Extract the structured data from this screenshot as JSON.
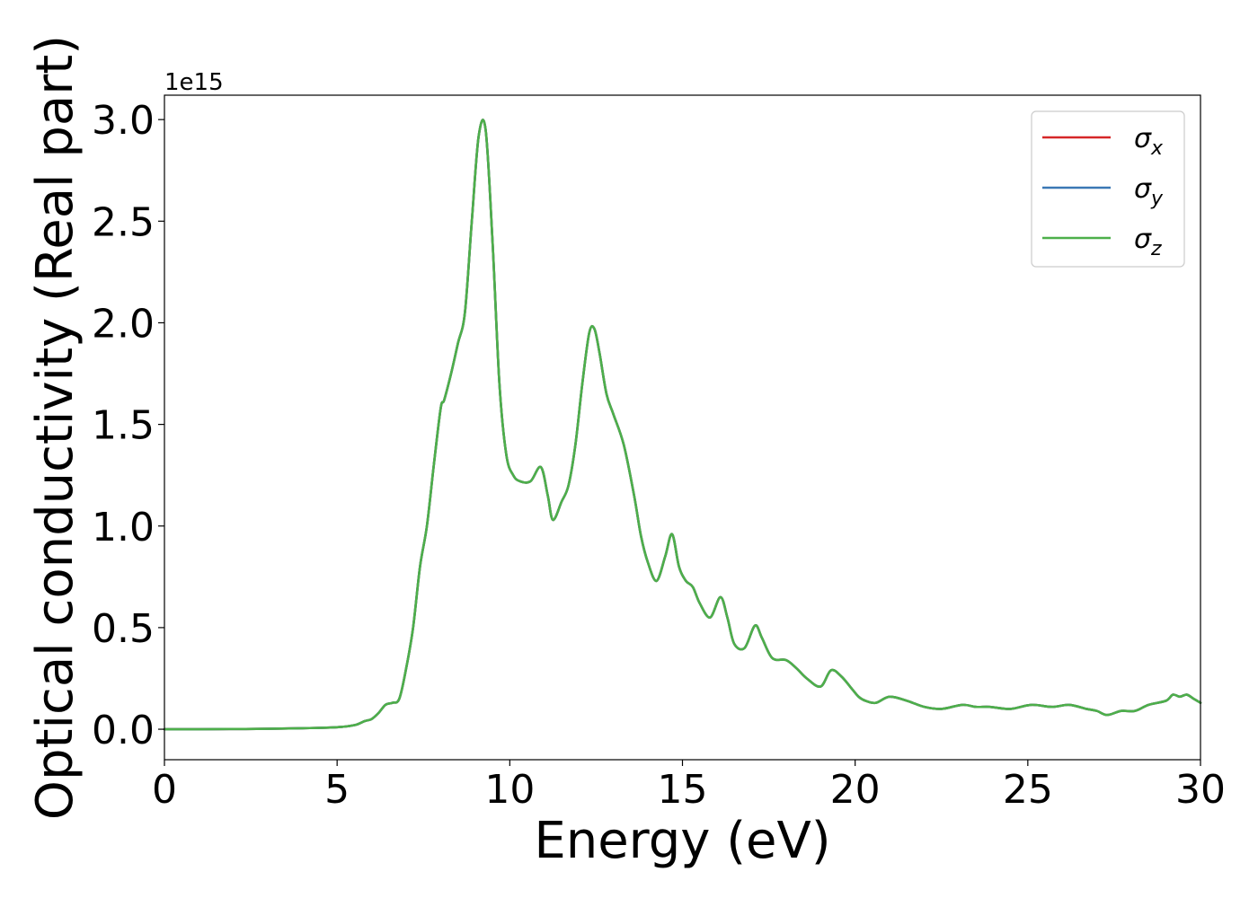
{
  "chart_data": {
    "type": "line",
    "xlabel": "Energy (eV)",
    "ylabel": "Optical conductivity (Real part)",
    "y_offset_text": "1e15",
    "y_scale": 1000000000000000.0,
    "xlim": [
      0,
      30
    ],
    "ylim": [
      -0.15,
      3.12
    ],
    "x_ticks": [
      0,
      5,
      10,
      15,
      20,
      25,
      30
    ],
    "x_tick_labels": [
      "0",
      "5",
      "10",
      "15",
      "20",
      "25",
      "30"
    ],
    "y_ticks": [
      0.0,
      0.5,
      1.0,
      1.5,
      2.0,
      2.5,
      3.0
    ],
    "y_tick_labels": [
      "0.0",
      "0.5",
      "1.0",
      "1.5",
      "2.0",
      "2.5",
      "3.0"
    ],
    "grid": false,
    "legend": {
      "placement": "top-right",
      "entries": [
        {
          "base": "σ",
          "sub": "x",
          "color": "#d62728"
        },
        {
          "base": "σ",
          "sub": "y",
          "color": "#3a78b5"
        },
        {
          "base": "σ",
          "sub": "z",
          "color": "#4daf4a"
        }
      ]
    },
    "x": [
      0,
      1,
      2,
      3,
      4,
      5,
      5.5,
      5.8,
      6.0,
      6.2,
      6.4,
      6.6,
      6.8,
      7.0,
      7.2,
      7.4,
      7.6,
      7.8,
      8.0,
      8.1,
      8.3,
      8.5,
      8.7,
      8.9,
      9.1,
      9.3,
      9.5,
      9.7,
      9.9,
      10.1,
      10.3,
      10.6,
      10.9,
      11.1,
      11.25,
      11.5,
      11.7,
      11.9,
      12.1,
      12.3,
      12.45,
      12.6,
      12.8,
      13.0,
      13.3,
      13.6,
      13.8,
      14.0,
      14.25,
      14.5,
      14.7,
      14.9,
      15.1,
      15.3,
      15.5,
      15.8,
      16.1,
      16.3,
      16.5,
      16.8,
      17.1,
      17.3,
      17.6,
      18.0,
      18.3,
      18.6,
      19.0,
      19.3,
      19.6,
      19.9,
      20.1,
      20.3,
      20.6,
      21.0,
      21.5,
      22.0,
      22.5,
      23.1,
      23.5,
      23.9,
      24.5,
      25.1,
      25.7,
      26.2,
      26.7,
      27.0,
      27.3,
      27.7,
      28.1,
      28.5,
      29.0,
      29.2,
      29.4,
      29.6,
      29.8,
      30.0
    ],
    "series": [
      {
        "name": "σx",
        "values": [
          0,
          0,
          0.001,
          0.002,
          0.005,
          0.01,
          0.02,
          0.04,
          0.05,
          0.08,
          0.12,
          0.13,
          0.15,
          0.3,
          0.5,
          0.8,
          1.0,
          1.3,
          1.58,
          1.62,
          1.75,
          1.9,
          2.05,
          2.5,
          2.92,
          2.95,
          2.4,
          1.7,
          1.35,
          1.25,
          1.22,
          1.22,
          1.29,
          1.15,
          1.03,
          1.12,
          1.2,
          1.4,
          1.7,
          1.95,
          1.97,
          1.85,
          1.65,
          1.55,
          1.4,
          1.15,
          0.95,
          0.82,
          0.73,
          0.85,
          0.96,
          0.8,
          0.73,
          0.7,
          0.62,
          0.55,
          0.65,
          0.55,
          0.42,
          0.4,
          0.51,
          0.45,
          0.35,
          0.34,
          0.3,
          0.25,
          0.21,
          0.29,
          0.26,
          0.2,
          0.16,
          0.14,
          0.13,
          0.16,
          0.14,
          0.11,
          0.1,
          0.12,
          0.11,
          0.11,
          0.1,
          0.12,
          0.11,
          0.12,
          0.1,
          0.09,
          0.07,
          0.09,
          0.09,
          0.12,
          0.14,
          0.17,
          0.16,
          0.17,
          0.15,
          0.13
        ]
      },
      {
        "name": "σy",
        "values": [
          0,
          0,
          0.001,
          0.002,
          0.005,
          0.01,
          0.02,
          0.04,
          0.05,
          0.08,
          0.12,
          0.13,
          0.15,
          0.3,
          0.5,
          0.8,
          1.0,
          1.3,
          1.58,
          1.62,
          1.75,
          1.9,
          2.05,
          2.5,
          2.92,
          2.95,
          2.4,
          1.7,
          1.35,
          1.25,
          1.22,
          1.22,
          1.29,
          1.15,
          1.03,
          1.12,
          1.2,
          1.4,
          1.7,
          1.95,
          1.97,
          1.85,
          1.65,
          1.55,
          1.4,
          1.15,
          0.95,
          0.82,
          0.73,
          0.85,
          0.96,
          0.8,
          0.73,
          0.7,
          0.62,
          0.55,
          0.65,
          0.55,
          0.42,
          0.4,
          0.51,
          0.45,
          0.35,
          0.34,
          0.3,
          0.25,
          0.21,
          0.29,
          0.26,
          0.2,
          0.16,
          0.14,
          0.13,
          0.16,
          0.14,
          0.11,
          0.1,
          0.12,
          0.11,
          0.11,
          0.1,
          0.12,
          0.11,
          0.12,
          0.1,
          0.09,
          0.07,
          0.09,
          0.09,
          0.12,
          0.14,
          0.17,
          0.16,
          0.17,
          0.15,
          0.13
        ]
      },
      {
        "name": "σz",
        "values": [
          0,
          0,
          0.001,
          0.002,
          0.005,
          0.01,
          0.02,
          0.04,
          0.05,
          0.08,
          0.12,
          0.13,
          0.15,
          0.3,
          0.5,
          0.8,
          1.0,
          1.3,
          1.58,
          1.62,
          1.75,
          1.9,
          2.05,
          2.5,
          2.92,
          2.95,
          2.4,
          1.7,
          1.35,
          1.25,
          1.22,
          1.22,
          1.29,
          1.15,
          1.03,
          1.12,
          1.2,
          1.4,
          1.7,
          1.95,
          1.97,
          1.85,
          1.65,
          1.55,
          1.4,
          1.15,
          0.95,
          0.82,
          0.73,
          0.85,
          0.96,
          0.8,
          0.73,
          0.7,
          0.62,
          0.55,
          0.65,
          0.55,
          0.42,
          0.4,
          0.51,
          0.45,
          0.35,
          0.34,
          0.3,
          0.25,
          0.21,
          0.29,
          0.26,
          0.2,
          0.16,
          0.14,
          0.13,
          0.16,
          0.14,
          0.11,
          0.1,
          0.12,
          0.11,
          0.11,
          0.1,
          0.12,
          0.11,
          0.12,
          0.1,
          0.09,
          0.07,
          0.09,
          0.09,
          0.12,
          0.14,
          0.17,
          0.16,
          0.17,
          0.15,
          0.13
        ]
      }
    ]
  }
}
